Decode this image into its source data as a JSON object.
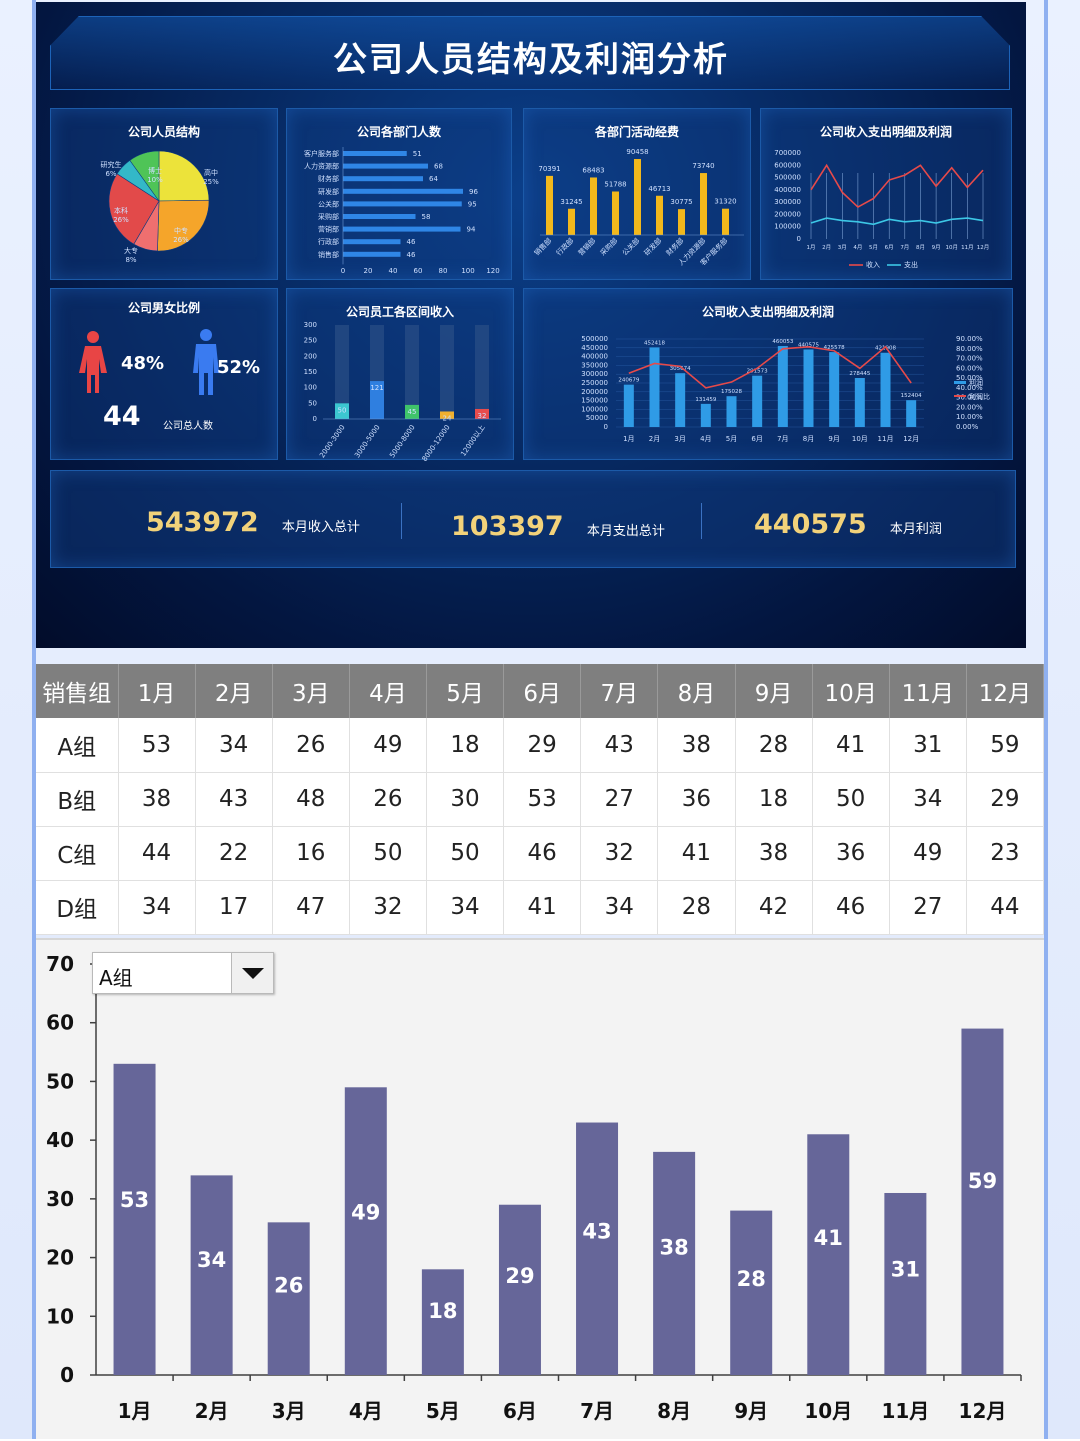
{
  "dashboard": {
    "title": "公司人员结构及利润分析",
    "panels": {
      "structure": {
        "title": "公司人员结构",
        "slices": [
          {
            "label": "高中",
            "value": 25,
            "pct": "25%",
            "color": "#ece33a"
          },
          {
            "label": "中专",
            "value": 26,
            "pct": "26%",
            "color": "#f5a52a"
          },
          {
            "label": "大专",
            "value": 8,
            "pct": "8%",
            "color": "#ef6f6f"
          },
          {
            "label": "本科",
            "value": 26,
            "pct": "26%",
            "color": "#e24a4a"
          },
          {
            "label": "研究生",
            "value": 6,
            "pct": "6%",
            "color": "#33b8c8"
          },
          {
            "label": "博士",
            "value": 10,
            "pct": "10%",
            "color": "#4fc457"
          }
        ]
      },
      "dept": {
        "title": "公司各部门人数",
        "items": [
          {
            "label": "客户服务部",
            "value": 51
          },
          {
            "label": "人力资源部",
            "value": 68
          },
          {
            "label": "财务部",
            "value": 64
          },
          {
            "label": "研发部",
            "value": 96
          },
          {
            "label": "公关部",
            "value": 95
          },
          {
            "label": "采购部",
            "value": 58
          },
          {
            "label": "营销部",
            "value": 94
          },
          {
            "label": "行政部",
            "value": 46
          },
          {
            "label": "销售部",
            "value": 46
          }
        ],
        "ticks": [
          "0",
          "20",
          "40",
          "60",
          "80",
          "100",
          "120"
        ],
        "max": 120
      },
      "expense": {
        "title": "各部门活动经费",
        "items": [
          {
            "label": "销售部",
            "value": 70391
          },
          {
            "label": "行政部",
            "value": 31245
          },
          {
            "label": "营销部",
            "value": 68483
          },
          {
            "label": "采购部",
            "value": 51788
          },
          {
            "label": "公关部",
            "value": 90458
          },
          {
            "label": "研发部",
            "value": 46713
          },
          {
            "label": "财务部",
            "value": 30775
          },
          {
            "label": "人力资源部",
            "value": 73740
          },
          {
            "label": "客户服务部",
            "value": 31320
          }
        ],
        "max": 100000
      },
      "income_line": {
        "title": "公司收入支出明细及利润",
        "ticks": [
          "700000",
          "600000",
          "500000",
          "400000",
          "300000",
          "200000",
          "100000",
          "0"
        ],
        "months": [
          "1月",
          "2月",
          "3月",
          "4月",
          "5月",
          "6月",
          "7月",
          "8月",
          "9月",
          "10月",
          "11月",
          "12月"
        ],
        "income": [
          400000,
          600000,
          380000,
          260000,
          330000,
          480000,
          520000,
          600000,
          430000,
          580000,
          420000,
          560000
        ],
        "expense": [
          130000,
          170000,
          150000,
          140000,
          120000,
          160000,
          140000,
          150000,
          130000,
          160000,
          170000,
          150000
        ],
        "max": 700000,
        "legend": [
          "收入",
          "支出"
        ]
      },
      "gender": {
        "title": "公司男女比例",
        "female_pct": "48%",
        "male_pct": "52%",
        "total": "44",
        "total_label": "公司总人数"
      },
      "salary": {
        "title": "公司员工各区间收入",
        "ticks": [
          "300",
          "250",
          "200",
          "150",
          "100",
          "50",
          "0"
        ],
        "max": 300,
        "items": [
          {
            "label": "2000-3000",
            "value": 50,
            "color": "#3cc6d0"
          },
          {
            "label": "3000-5000",
            "value": 121,
            "color": "#2f7fe0"
          },
          {
            "label": "5000-8000",
            "value": 45,
            "color": "#3fc46a"
          },
          {
            "label": "8000-12000",
            "value": 24,
            "color": "#f0b030"
          },
          {
            "label": "12000以上",
            "value": 32,
            "color": "#e84c4c"
          }
        ]
      },
      "profit": {
        "title": "公司收入支出明细及利润",
        "ticks": [
          "500000",
          "450000",
          "400000",
          "350000",
          "300000",
          "250000",
          "200000",
          "150000",
          "100000",
          "50000",
          "0"
        ],
        "pct_ticks": [
          "90.00%",
          "80.00%",
          "70.00%",
          "60.00%",
          "50.00%",
          "40.00%",
          "30.00%",
          "20.00%",
          "10.00%",
          "0.00%"
        ],
        "months": [
          "1月",
          "2月",
          "3月",
          "4月",
          "5月",
          "6月",
          "7月",
          "8月",
          "9月",
          "10月",
          "11月",
          "12月"
        ],
        "values": [
          240679,
          452418,
          305674,
          131459,
          175028,
          291573,
          460053,
          440575,
          425578,
          278445,
          421908,
          152404
        ],
        "value_labels": [
          "240679",
          "452418",
          "305674",
          "131459",
          "175028",
          "291573",
          "460053",
          "440575",
          "425578",
          "278445",
          "421908",
          "152404"
        ],
        "ratio": [
          55,
          65,
          62,
          40,
          46,
          60,
          80,
          82,
          78,
          60,
          82,
          45
        ],
        "max": 500000,
        "legend": [
          "利润",
          "利润比"
        ]
      }
    },
    "kpis": [
      {
        "value": "543972",
        "label": "本月收入总计"
      },
      {
        "value": "103397",
        "label": "本月支出总计"
      },
      {
        "value": "440575",
        "label": "本月利润"
      }
    ]
  },
  "table": {
    "header": [
      "销售组",
      "1月",
      "2月",
      "3月",
      "4月",
      "5月",
      "6月",
      "7月",
      "8月",
      "9月",
      "10月",
      "11月",
      "12月"
    ],
    "rows": [
      [
        "A组",
        "53",
        "34",
        "26",
        "49",
        "18",
        "29",
        "43",
        "38",
        "28",
        "41",
        "31",
        "59"
      ],
      [
        "B组",
        "38",
        "43",
        "48",
        "26",
        "30",
        "53",
        "27",
        "36",
        "18",
        "50",
        "34",
        "29"
      ],
      [
        "C组",
        "44",
        "22",
        "16",
        "50",
        "50",
        "46",
        "32",
        "41",
        "38",
        "36",
        "49",
        "23"
      ],
      [
        "D组",
        "34",
        "17",
        "47",
        "32",
        "34",
        "41",
        "34",
        "28",
        "42",
        "46",
        "27",
        "44"
      ]
    ]
  },
  "chart_data": {
    "type": "bar",
    "selector_value": "A组",
    "categories": [
      "1月",
      "2月",
      "3月",
      "4月",
      "5月",
      "6月",
      "7月",
      "8月",
      "9月",
      "10月",
      "11月",
      "12月"
    ],
    "values": [
      53,
      34,
      26,
      49,
      18,
      29,
      43,
      38,
      28,
      41,
      31,
      59
    ],
    "ylim": [
      0,
      70
    ],
    "yticks": [
      "0",
      "10",
      "20",
      "30",
      "40",
      "50",
      "60",
      "70"
    ],
    "bar_color": "#666699",
    "grid": false
  }
}
